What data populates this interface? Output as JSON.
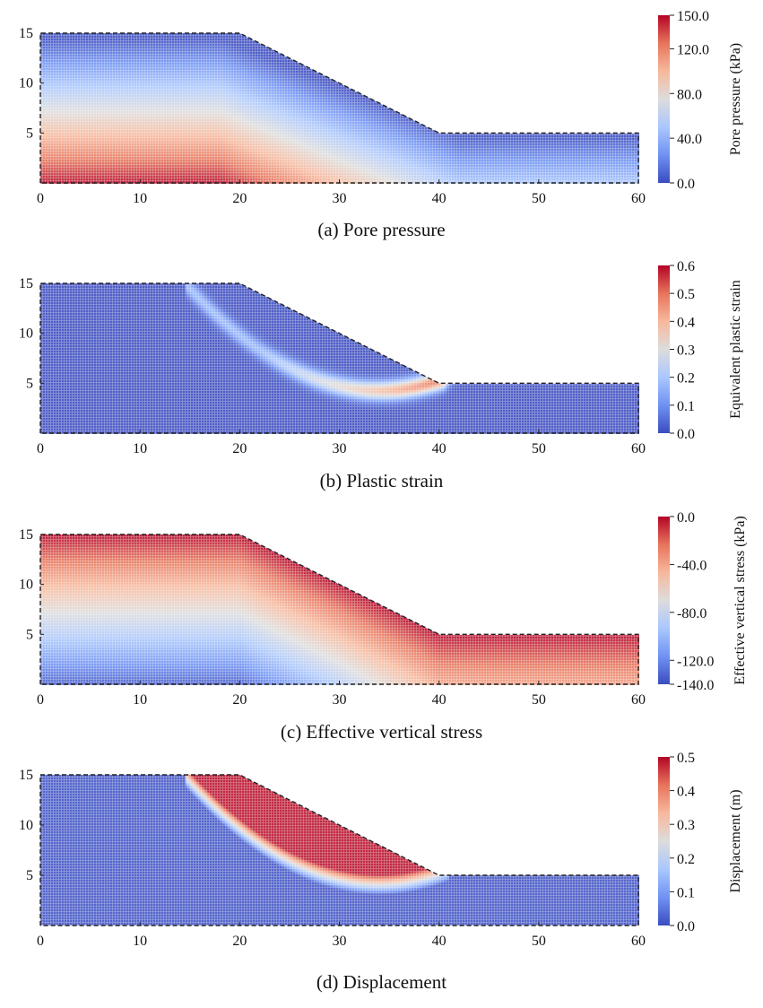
{
  "figure": {
    "colormap": "coolwarm",
    "colormap_stops": [
      "#3b4cc0",
      "#6f92f3",
      "#aac7fd",
      "#dddcdc",
      "#f7b89c",
      "#e7745b",
      "#b40426"
    ],
    "geometry": {
      "domain_x": [
        0,
        60
      ],
      "domain_y": [
        0,
        15
      ],
      "slope_crest": [
        20,
        15
      ],
      "slope_toe": [
        40,
        5
      ],
      "boundary_style": "dashed",
      "description": "Slope: height 15 m for x in [0,20], slope to height 5 m at x=40, flat to x=60"
    }
  },
  "chart_data": [
    {
      "type": "heatmap",
      "id": "a",
      "caption": "(a) Pore pressure",
      "title": "",
      "xlabel": "",
      "ylabel": "",
      "xlim": [
        0,
        60
      ],
      "ylim": [
        0,
        15
      ],
      "x_ticks": [
        "0",
        "10",
        "20",
        "30",
        "40",
        "50",
        "60"
      ],
      "y_ticks": [
        "5",
        "10",
        "15"
      ],
      "colorbar": {
        "label": "Pore pressure (kPa)",
        "range": [
          0,
          150
        ],
        "ticks": [
          {
            "v": 0,
            "t": "0.0"
          },
          {
            "v": 40,
            "t": "40.0"
          },
          {
            "v": 80,
            "t": "80.0"
          },
          {
            "v": 120,
            "t": "120.0"
          },
          {
            "v": 150,
            "t": "150.0"
          }
        ]
      },
      "field": "pore_pressure",
      "field_notes": "Hydrostatic-like; ~150 kPa at base under crest, ~0-20 kPa near top surface; decreases to ~40 kPa at base of toe region"
    },
    {
      "type": "heatmap",
      "id": "b",
      "caption": "(b) Plastic strain",
      "title": "",
      "xlabel": "",
      "ylabel": "",
      "xlim": [
        0,
        60
      ],
      "ylim": [
        0,
        15
      ],
      "x_ticks": [
        "0",
        "10",
        "20",
        "30",
        "40",
        "50",
        "60"
      ],
      "y_ticks": [
        "5",
        "10",
        "15"
      ],
      "colorbar": {
        "label": "Equivalent plastic strain",
        "range": [
          0,
          0.6
        ],
        "ticks": [
          {
            "v": 0,
            "t": "0.0"
          },
          {
            "v": 0.1,
            "t": "0.1"
          },
          {
            "v": 0.2,
            "t": "0.2"
          },
          {
            "v": 0.3,
            "t": "0.3"
          },
          {
            "v": 0.4,
            "t": "0.4"
          },
          {
            "v": 0.5,
            "t": "0.5"
          },
          {
            "v": 0.6,
            "t": "0.6"
          }
        ]
      },
      "field": "plastic_strain",
      "field_notes": "Shear band from (~15,15) curving down to toe (~40,5); peak ~0.5 near x 36-40, y~4.5"
    },
    {
      "type": "heatmap",
      "id": "c",
      "caption": "(c) Effective vertical stress",
      "title": "",
      "xlabel": "",
      "ylabel": "",
      "xlim": [
        0,
        60
      ],
      "ylim": [
        0,
        15
      ],
      "x_ticks": [
        "0",
        "10",
        "20",
        "30",
        "40",
        "50",
        "60"
      ],
      "y_ticks": [
        "5",
        "10",
        "15"
      ],
      "colorbar": {
        "label": "Effective vertical stress (kPa)",
        "range": [
          -140,
          0
        ],
        "ticks": [
          {
            "v": 0,
            "t": "0.0"
          },
          {
            "v": -40,
            "t": "-40.0"
          },
          {
            "v": -80,
            "t": "-80.0"
          },
          {
            "v": -120,
            "t": "-120.0"
          },
          {
            "v": -140,
            "t": "-140.0"
          }
        ]
      },
      "field": "effective_vertical_stress",
      "field_notes": "~0 kPa at surface, ~-130 kPa at base under crest, ~-40 kPa at base of right flat"
    },
    {
      "type": "heatmap",
      "id": "d",
      "caption": "(d) Displacement",
      "title": "",
      "xlabel": "",
      "ylabel": "",
      "xlim": [
        0,
        60
      ],
      "ylim": [
        0,
        15
      ],
      "x_ticks": [
        "0",
        "10",
        "20",
        "30",
        "40",
        "50",
        "60"
      ],
      "y_ticks": [
        "5",
        "10",
        "15"
      ],
      "colorbar": {
        "label": "Displacement (m)",
        "range": [
          0,
          0.5
        ],
        "ticks": [
          {
            "v": 0,
            "t": "0.0"
          },
          {
            "v": 0.1,
            "t": "0.1"
          },
          {
            "v": 0.2,
            "t": "0.2"
          },
          {
            "v": 0.3,
            "t": "0.3"
          },
          {
            "v": 0.4,
            "t": "0.4"
          },
          {
            "v": 0.5,
            "t": "0.5"
          }
        ]
      },
      "field": "displacement",
      "field_notes": "Sliding mass above slip surface (from ~15,15 to ~40,5) at ~0.5 m; rest ~0 m"
    }
  ]
}
